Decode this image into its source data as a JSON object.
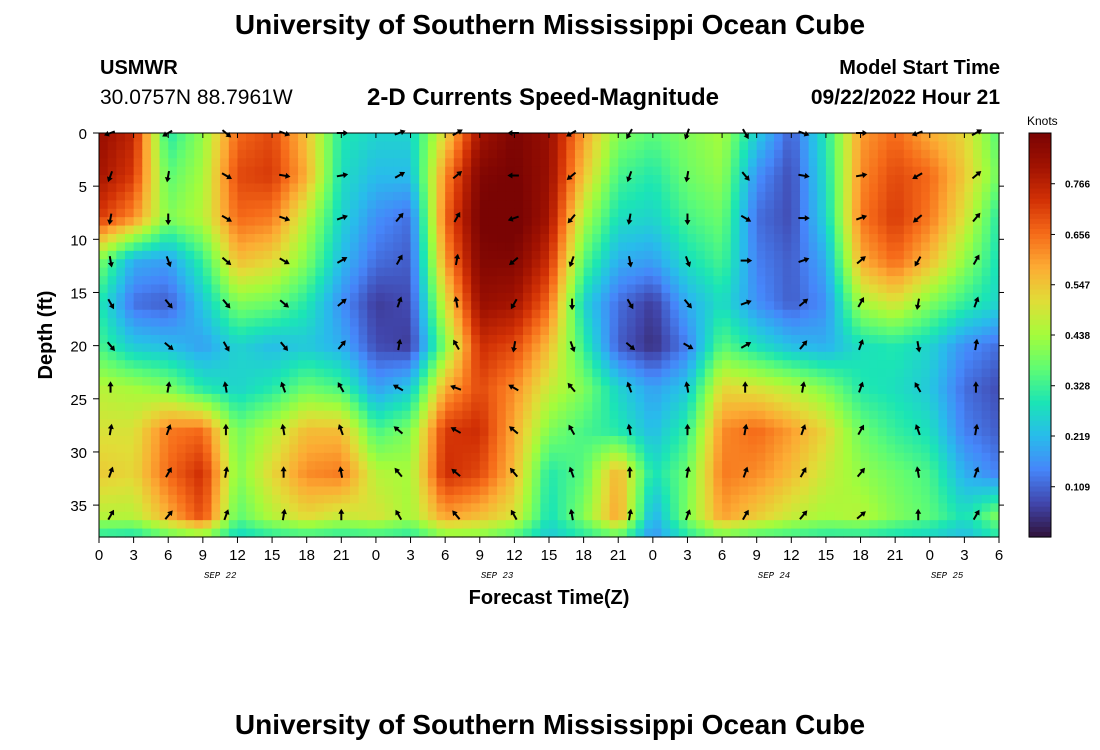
{
  "header": {
    "title": "University of Southern Mississippi Ocean Cube",
    "station": "USMWR",
    "coordinates": "30.0757N  88.7961W",
    "subtitle": "2-D Currents Speed-Magnitude",
    "model_start_label": "Model Start Time",
    "model_start_value": "09/22/2022 Hour 21"
  },
  "footer": {
    "title": "University of Southern Mississippi Ocean Cube"
  },
  "colors": {
    "background": "#ffffff",
    "axis": "#000000"
  },
  "chart_data": {
    "type": "heatmap",
    "title": "2-D Currents Speed-Magnitude",
    "xlabel": "Forecast Time(Z)",
    "ylabel": "Depth (ft)",
    "x_ticks": [
      "0",
      "3",
      "6",
      "9",
      "12",
      "15",
      "18",
      "21",
      "0",
      "3",
      "6",
      "9",
      "12",
      "15",
      "18",
      "21",
      "0",
      "3",
      "6",
      "9",
      "12",
      "15",
      "18",
      "21",
      "0",
      "3",
      "6"
    ],
    "date_labels": [
      {
        "label": "SEP 22",
        "tick_index": 3.5
      },
      {
        "label": "SEP 23",
        "tick_index": 11.5
      },
      {
        "label": "SEP 24",
        "tick_index": 19.5
      },
      {
        "label": "SEP 25",
        "tick_index": 24.5
      }
    ],
    "y_ticks": [
      0,
      5,
      10,
      15,
      20,
      25,
      30,
      35
    ],
    "ylim": [
      0,
      38
    ],
    "xlim_hours": [
      0,
      78
    ],
    "colorbar": {
      "title": "Knots",
      "ticks": [
        "0.766",
        "0.656",
        "0.547",
        "0.438",
        "0.328",
        "0.219",
        "0.109"
      ],
      "range": [
        0,
        0.876
      ],
      "colormap": [
        "#30123b",
        "#4146ac",
        "#4686fa",
        "#28bceb",
        "#1be5b5",
        "#5ffc73",
        "#a4fc3b",
        "#e1dd37",
        "#fcac34",
        "#f66b19",
        "#d23105",
        "#a11201",
        "#7a0403"
      ]
    },
    "depth_levels_ft": [
      0,
      4,
      8,
      12,
      16,
      20,
      24,
      28,
      32,
      36,
      38
    ],
    "time_hours": [
      0,
      3,
      6,
      9,
      12,
      15,
      18,
      21,
      24,
      27,
      30,
      33,
      36,
      39,
      42,
      45,
      48,
      51,
      54,
      57,
      60,
      63,
      66,
      69,
      72,
      75,
      78
    ],
    "speed_knots": [
      [
        0.82,
        0.76,
        0.3,
        0.42,
        0.66,
        0.7,
        0.55,
        0.3,
        0.26,
        0.26,
        0.52,
        0.8,
        0.87,
        0.82,
        0.6,
        0.4,
        0.36,
        0.4,
        0.44,
        0.25,
        0.1,
        0.3,
        0.6,
        0.66,
        0.58,
        0.52,
        0.35
      ],
      [
        0.8,
        0.72,
        0.36,
        0.44,
        0.7,
        0.72,
        0.58,
        0.28,
        0.22,
        0.22,
        0.62,
        0.86,
        0.88,
        0.82,
        0.55,
        0.34,
        0.3,
        0.38,
        0.42,
        0.16,
        0.08,
        0.28,
        0.62,
        0.7,
        0.66,
        0.54,
        0.38
      ],
      [
        0.72,
        0.62,
        0.4,
        0.46,
        0.66,
        0.64,
        0.46,
        0.26,
        0.16,
        0.12,
        0.66,
        0.88,
        0.9,
        0.8,
        0.45,
        0.28,
        0.26,
        0.34,
        0.38,
        0.12,
        0.08,
        0.26,
        0.64,
        0.72,
        0.64,
        0.5,
        0.3
      ],
      [
        0.4,
        0.2,
        0.18,
        0.32,
        0.56,
        0.52,
        0.4,
        0.22,
        0.12,
        0.1,
        0.6,
        0.86,
        0.86,
        0.74,
        0.36,
        0.2,
        0.18,
        0.28,
        0.34,
        0.14,
        0.1,
        0.2,
        0.58,
        0.66,
        0.56,
        0.42,
        0.28
      ],
      [
        0.3,
        0.12,
        0.1,
        0.24,
        0.4,
        0.38,
        0.3,
        0.16,
        0.06,
        0.08,
        0.5,
        0.82,
        0.8,
        0.66,
        0.26,
        0.12,
        0.06,
        0.2,
        0.28,
        0.16,
        0.1,
        0.16,
        0.44,
        0.5,
        0.4,
        0.32,
        0.26
      ],
      [
        0.34,
        0.24,
        0.22,
        0.18,
        0.26,
        0.22,
        0.24,
        0.2,
        0.08,
        0.06,
        0.4,
        0.74,
        0.7,
        0.56,
        0.32,
        0.1,
        0.04,
        0.14,
        0.36,
        0.28,
        0.22,
        0.2,
        0.28,
        0.3,
        0.26,
        0.16,
        0.12
      ],
      [
        0.46,
        0.44,
        0.4,
        0.3,
        0.26,
        0.3,
        0.38,
        0.34,
        0.18,
        0.24,
        0.58,
        0.7,
        0.62,
        0.48,
        0.4,
        0.26,
        0.18,
        0.24,
        0.52,
        0.5,
        0.46,
        0.4,
        0.3,
        0.28,
        0.24,
        0.12,
        0.08
      ],
      [
        0.5,
        0.5,
        0.64,
        0.66,
        0.38,
        0.46,
        0.56,
        0.56,
        0.34,
        0.4,
        0.72,
        0.74,
        0.58,
        0.4,
        0.34,
        0.3,
        0.22,
        0.32,
        0.62,
        0.66,
        0.6,
        0.52,
        0.38,
        0.32,
        0.28,
        0.14,
        0.1
      ],
      [
        0.54,
        0.52,
        0.66,
        0.74,
        0.4,
        0.52,
        0.62,
        0.64,
        0.46,
        0.44,
        0.74,
        0.7,
        0.56,
        0.3,
        0.36,
        0.58,
        0.28,
        0.38,
        0.64,
        0.62,
        0.56,
        0.48,
        0.42,
        0.38,
        0.34,
        0.2,
        0.14
      ],
      [
        0.46,
        0.46,
        0.58,
        0.7,
        0.36,
        0.46,
        0.52,
        0.48,
        0.5,
        0.44,
        0.6,
        0.56,
        0.5,
        0.28,
        0.4,
        0.6,
        0.2,
        0.4,
        0.6,
        0.54,
        0.48,
        0.44,
        0.46,
        0.4,
        0.36,
        0.28,
        0.4
      ],
      [
        0.3,
        0.28,
        0.36,
        0.4,
        0.26,
        0.3,
        0.32,
        0.3,
        0.32,
        0.3,
        0.4,
        0.4,
        0.34,
        0.24,
        0.3,
        0.36,
        0.16,
        0.3,
        0.38,
        0.34,
        0.32,
        0.3,
        0.3,
        0.28,
        0.26,
        0.22,
        0.3
      ]
    ],
    "vector_rows_ft": [
      0,
      4,
      8,
      12,
      16,
      20,
      24,
      28,
      32,
      36
    ],
    "vector_cols_hours": [
      1,
      6,
      11,
      16,
      21,
      26,
      31,
      36,
      41,
      46,
      51,
      56,
      61,
      66,
      71,
      76
    ],
    "vector_angles_deg": [
      [
        250,
        240,
        130,
        110,
        90,
        70,
        60,
        270,
        240,
        210,
        200,
        150,
        110,
        90,
        250,
        60
      ],
      [
        200,
        190,
        120,
        100,
        80,
        60,
        50,
        270,
        230,
        200,
        190,
        140,
        100,
        80,
        240,
        50
      ],
      [
        190,
        180,
        120,
        110,
        70,
        40,
        30,
        250,
        220,
        190,
        180,
        120,
        90,
        70,
        230,
        40
      ],
      [
        170,
        160,
        130,
        120,
        60,
        30,
        10,
        230,
        200,
        170,
        160,
        90,
        70,
        50,
        210,
        30
      ],
      [
        150,
        140,
        140,
        130,
        50,
        20,
        350,
        210,
        180,
        150,
        140,
        70,
        50,
        30,
        190,
        20
      ],
      [
        140,
        130,
        150,
        140,
        40,
        10,
        330,
        190,
        160,
        130,
        120,
        60,
        40,
        20,
        170,
        10
      ],
      [
        0,
        10,
        350,
        340,
        330,
        300,
        290,
        300,
        320,
        340,
        350,
        0,
        10,
        20,
        330,
        0
      ],
      [
        10,
        20,
        0,
        350,
        340,
        310,
        300,
        310,
        330,
        350,
        0,
        10,
        20,
        30,
        340,
        10
      ],
      [
        20,
        30,
        10,
        0,
        350,
        320,
        310,
        320,
        340,
        0,
        10,
        20,
        30,
        40,
        350,
        20
      ],
      [
        30,
        40,
        20,
        10,
        0,
        330,
        320,
        330,
        350,
        10,
        20,
        30,
        40,
        50,
        0,
        30
      ]
    ]
  }
}
